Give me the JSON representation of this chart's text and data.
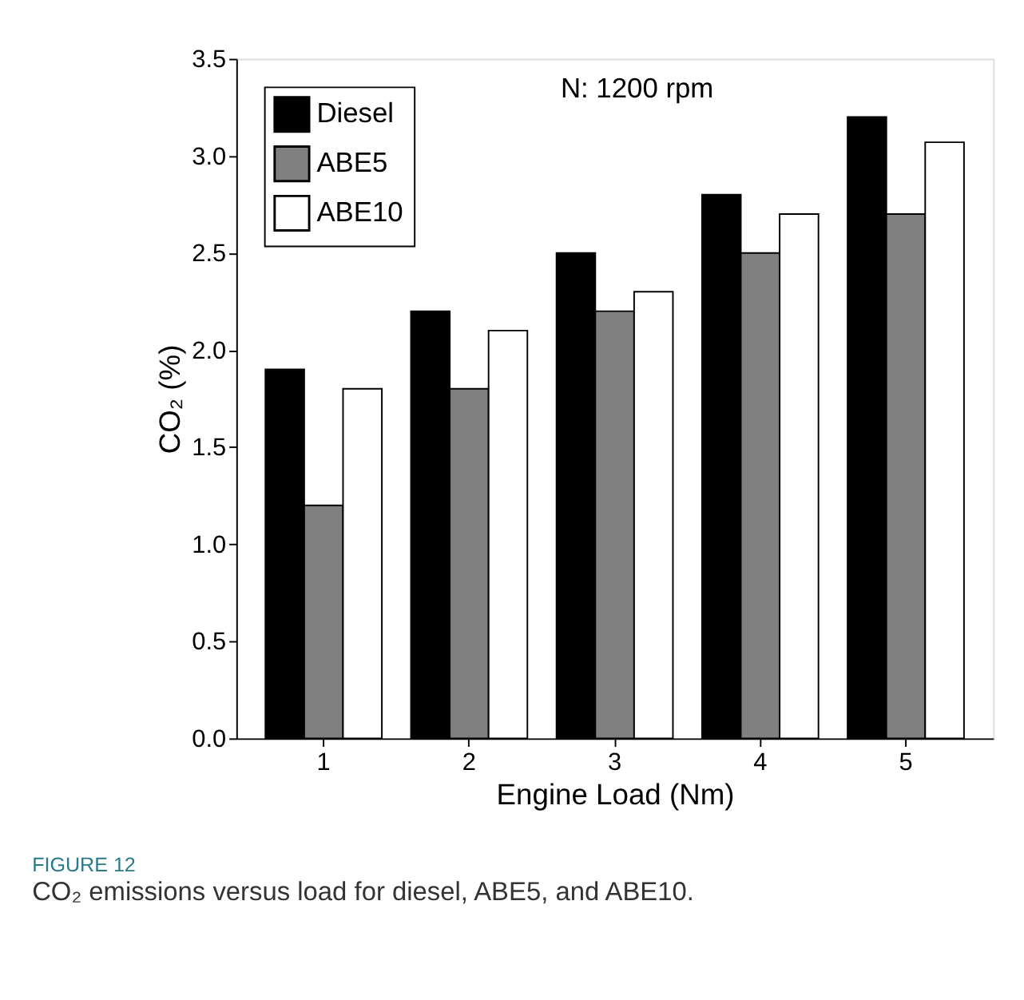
{
  "chart_data": {
    "type": "bar",
    "categories": [
      "1",
      "2",
      "3",
      "4",
      "5"
    ],
    "series": [
      {
        "name": "Diesel",
        "color": "#000000",
        "values": [
          1.9,
          2.2,
          2.5,
          2.8,
          3.2
        ]
      },
      {
        "name": "ABE5",
        "color": "#808080",
        "values": [
          1.2,
          1.8,
          2.2,
          2.5,
          2.7
        ]
      },
      {
        "name": "ABE10",
        "color": "#ffffff",
        "values": [
          1.8,
          2.1,
          2.3,
          2.7,
          3.07
        ]
      }
    ],
    "xlabel": "Engine Load (Nm)",
    "ylabel": "CO₂ (%)",
    "ylim": [
      0,
      3.5
    ],
    "yticks": [
      {
        "value": 0,
        "label": "0.0"
      },
      0.5,
      {
        "value": 1,
        "label": "1.0"
      },
      1.5,
      {
        "value": 2,
        "label": "2.0"
      },
      2.5,
      {
        "value": 3,
        "label": "3.0"
      },
      3.5
    ],
    "grid": false,
    "legend": "top left",
    "annotations": [
      "N: 1200 rpm",
      "FIGURE 12",
      "CO₂ emissions versus load for diesel, ABE5, and ABE10."
    ]
  }
}
